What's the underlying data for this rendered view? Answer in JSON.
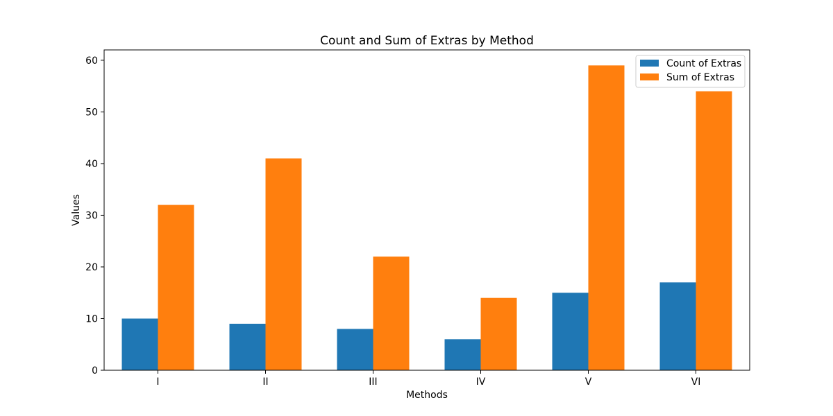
{
  "chart_data": {
    "type": "bar",
    "title": "Count and Sum of Extras by Method",
    "xlabel": "Methods",
    "ylabel": "Values",
    "categories": [
      "I",
      "II",
      "III",
      "IV",
      "V",
      "VI"
    ],
    "series": [
      {
        "name": "Count of Extras",
        "color": "#1f77b4",
        "values": [
          10,
          9,
          8,
          6,
          15,
          17
        ]
      },
      {
        "name": "Sum of Extras",
        "color": "#ff7f0e",
        "values": [
          32,
          41,
          22,
          14,
          59,
          54
        ]
      }
    ],
    "ylim": [
      0,
      62
    ],
    "yticks": [
      0,
      10,
      20,
      30,
      40,
      50,
      60
    ],
    "legend": "top-right",
    "grid": false
  }
}
